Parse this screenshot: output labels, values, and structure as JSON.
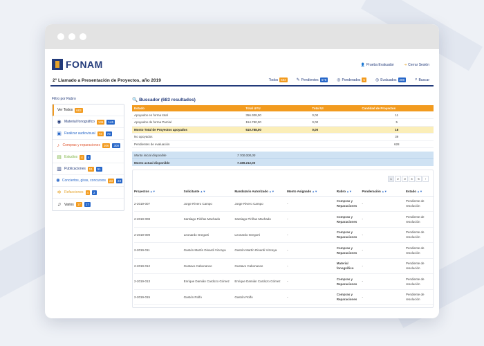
{
  "brand": {
    "name": "FONAM"
  },
  "user": {
    "name": "Prueba Evaluador",
    "logout": "Cerrar Sesión"
  },
  "call": {
    "title": "2° Llamado a Presentación de Proyectos, año 2019"
  },
  "tabs": [
    {
      "label": "Todos",
      "count": "683",
      "color": "orange",
      "icon": "list-icon"
    },
    {
      "label": "Pendientes",
      "count": "678",
      "color": "blue",
      "icon": "pencil-icon"
    },
    {
      "label": "Ponderados",
      "count": "5",
      "color": "orange",
      "icon": "check-circle-icon"
    },
    {
      "label": "Evaluados",
      "count": "208",
      "color": "blue",
      "icon": "check-circle-icon"
    },
    {
      "label": "Buscar",
      "icon": "search-icon"
    }
  ],
  "sidebar": {
    "title": "Filtro por Rubro",
    "items": [
      {
        "label": "Ver Todos",
        "badges": [
          "683"
        ],
        "color": "#222",
        "icon": ""
      },
      {
        "label": "Material fonográfico",
        "badges": [
          "146",
          "146"
        ],
        "color": "#223a7a",
        "icon": "disc-icon"
      },
      {
        "label": "Realizar audiovisual",
        "badges": [
          "73",
          "73"
        ],
        "color": "#2767c9",
        "icon": "film-icon"
      },
      {
        "label": "Compras y reparaciones",
        "badges": [
          "306",
          "300"
        ],
        "color": "#e0552e",
        "icon": "guitar-icon"
      },
      {
        "label": "Estudios",
        "badges": [
          "4",
          "4"
        ],
        "color": "#7cb342",
        "icon": "studio-icon"
      },
      {
        "label": "Publicaciones",
        "badges": [
          "51",
          "51"
        ],
        "color": "#223a7a",
        "icon": "book-icon"
      },
      {
        "label": "Conciertos, giras, concursos",
        "badges": [
          "23",
          "23"
        ],
        "color": "#2767c9",
        "icon": "concert-icon"
      },
      {
        "label": "Refacciones",
        "badges": [
          "4",
          "2"
        ],
        "color": "#e5a32a",
        "icon": "wrench-icon"
      },
      {
        "label": "Varios",
        "badges": [
          "17",
          "17"
        ],
        "color": "#222",
        "icon": "music-note-icon"
      }
    ]
  },
  "search": {
    "title": "Buscador (683 resultados)",
    "summary_headers": [
      "Estado",
      "Total UYU",
      "Total UI",
      "Cantidad de Proyectos"
    ],
    "summary_rows": [
      {
        "estado": "Apoyados en forma total",
        "uyu": "356.308,00",
        "ui": "0,00",
        "qty": "11",
        "total": false
      },
      {
        "estado": "Apoyados de forma Parcial",
        "uyu": "154.780,00",
        "ui": "0,00",
        "qty": "5",
        "total": false
      },
      {
        "estado": "Monto Total de Proyectos apoyados",
        "uyu": "510.788,00",
        "ui": "0,00",
        "qty": "16",
        "total": true
      },
      {
        "estado": "No apoyados",
        "uyu": "",
        "ui": "",
        "qty": "39",
        "total": false
      },
      {
        "estado": "Pendientes de evaluación",
        "uyu": "",
        "ui": "",
        "qty": "628",
        "total": false
      }
    ],
    "amounts": [
      {
        "label": "Monto inicial disponible",
        "value": "7.700.000,00"
      },
      {
        "label": "Monto actual disponible",
        "value": "7.189.212,00"
      }
    ]
  },
  "pager": [
    "1",
    "2",
    "3",
    "4",
    "5",
    "›"
  ],
  "projects": {
    "headers": [
      "Proyectos",
      "Solicitante",
      "Mandatario Autorizado",
      "Monto Asignado",
      "Rubro",
      "Ponderación",
      "Estado"
    ],
    "sortable": [
      true,
      true,
      true,
      true,
      true,
      true,
      true
    ],
    "rows": [
      {
        "id": "2-2019-007",
        "solicitante": "Jorge Rivero Campo",
        "mandatario": "Jorge Rivero Campo",
        "monto": "-",
        "rubro": [
          "Compras y",
          "Reparaciones"
        ],
        "ponderacion": "-",
        "estado": [
          "Pendiente de",
          "resolución"
        ]
      },
      {
        "id": "2-2019-008",
        "solicitante": "Santiago Piriñas Machado",
        "mandatario": "Santiago Piriñas Machado",
        "monto": "-",
        "rubro": [
          "Compras y",
          "Reparaciones"
        ],
        "ponderacion": "-",
        "estado": [
          "Pendiente de",
          "resolución"
        ]
      },
      {
        "id": "2-2019-009",
        "solicitante": "Leonardo Gregorti",
        "mandatario": "Leonardo Gregorti",
        "monto": "-",
        "rubro": [
          "Compras y",
          "Reparaciones"
        ],
        "ponderacion": "-",
        "estado": [
          "Pendiente de",
          "resolución"
        ]
      },
      {
        "id": "2-2019-011",
        "solicitante": "Gastón Martín Dinardi Vizcaya",
        "mandatario": "Gastón Martín Dinardi Vizcaya",
        "monto": "-",
        "rubro": [
          "Compras y",
          "Reparaciones"
        ],
        "ponderacion": "-",
        "estado": [
          "Pendiente de",
          "resolución"
        ]
      },
      {
        "id": "2-2019-012",
        "solicitante": "Gustavo Cabonance",
        "mandatario": "Gustavo Cabonance",
        "monto": "-",
        "rubro": [
          "Material",
          "fonográfico"
        ],
        "ponderacion": "-",
        "estado": [
          "Pendiente de",
          "resolución"
        ]
      },
      {
        "id": "2-2019-013",
        "solicitante": "Enrique Damián Cardozo Gómez",
        "mandatario": "Enrique Damián Cardozo Gómez",
        "monto": "-",
        "rubro": [
          "Compras y",
          "Reparaciones"
        ],
        "ponderacion": "-",
        "estado": [
          "Pendiente de",
          "resolución"
        ]
      },
      {
        "id": "2-2019-015",
        "solicitante": "Gastón Rolfo",
        "mandatario": "Gastón Rolfo",
        "monto": "-",
        "rubro": [
          "Compras y",
          "Reparaciones"
        ],
        "ponderacion": "-",
        "estado": [
          "Pendiente de",
          "resolución"
        ]
      }
    ]
  },
  "colors": {
    "brand_navy": "#223a7a",
    "accent_orange": "#f29b1f",
    "badge_blue": "#2767c9",
    "highlight_yellow": "#fbeeb8",
    "amount_blue": "#cfe2f3"
  }
}
